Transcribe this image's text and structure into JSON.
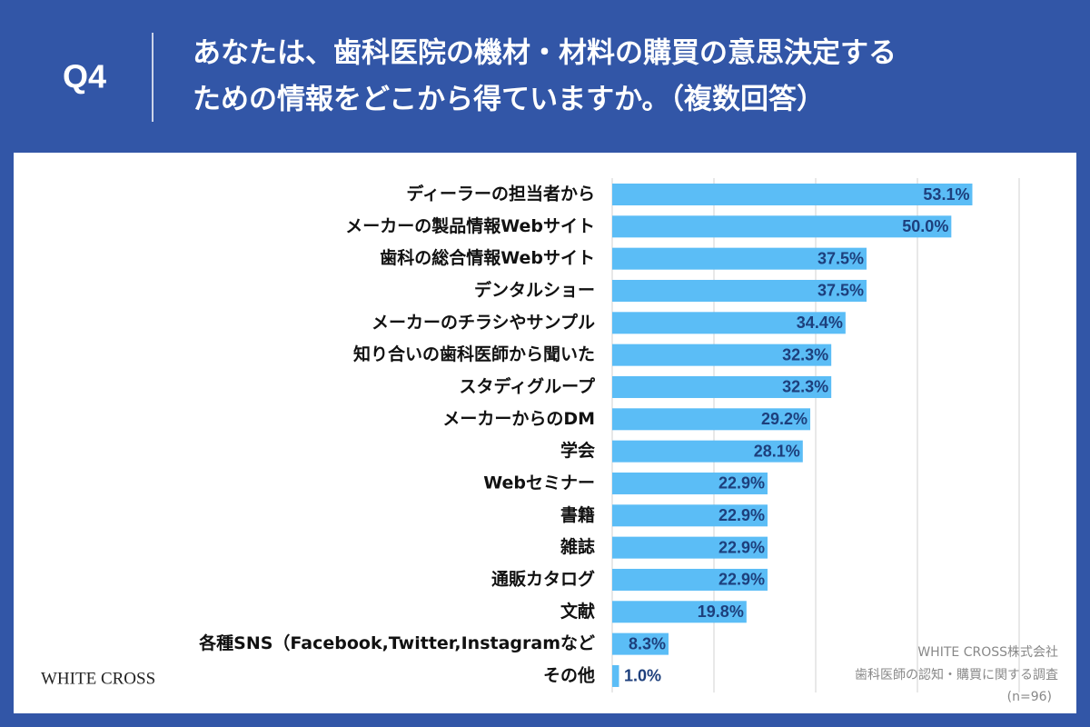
{
  "chart_data": {
    "type": "barh",
    "question": "Q4",
    "title": [
      "あなたは、歯科医院の機材・材料の購買の意思決定する",
      "ための情報をどこから得ていますか。（複数回答）"
    ],
    "categories": [
      "ディーラーの担当者から",
      "メーカーの製品情報Webサイト",
      "歯科の総合情報Webサイト",
      "デンタルショー",
      "メーカーのチラシやサンプル",
      "知り合いの歯科医師から聞いた",
      "スタディグループ",
      "メーカーからのDM",
      "学会",
      "Webセミナー",
      "書籍",
      "雑誌",
      "通販カタログ",
      "文献",
      "各種SNS（Facebook,Twitter,Instagramなど",
      "その他"
    ],
    "values": [
      53.1,
      50.0,
      37.5,
      37.5,
      34.4,
      32.3,
      32.3,
      29.2,
      28.1,
      22.9,
      22.9,
      22.9,
      22.9,
      19.8,
      8.3,
      1.0
    ],
    "value_labels": [
      "53.1%",
      "50.0%",
      "37.5%",
      "37.5%",
      "34.4%",
      "32.3%",
      "32.3%",
      "29.2%",
      "28.1%",
      "22.9%",
      "22.9%",
      "22.9%",
      "22.9%",
      "19.8%",
      "8.3%",
      "1.0%"
    ],
    "color": "#5bbdf6",
    "xlim": [
      0,
      60
    ],
    "xticks": [
      0,
      15,
      30,
      45,
      60
    ],
    "grid": true,
    "logo": "WHITE CROSS",
    "source": [
      "WHITE CROSS株式会社",
      "歯科医師の認知・購買に関する調査",
      "(n=96)"
    ]
  }
}
